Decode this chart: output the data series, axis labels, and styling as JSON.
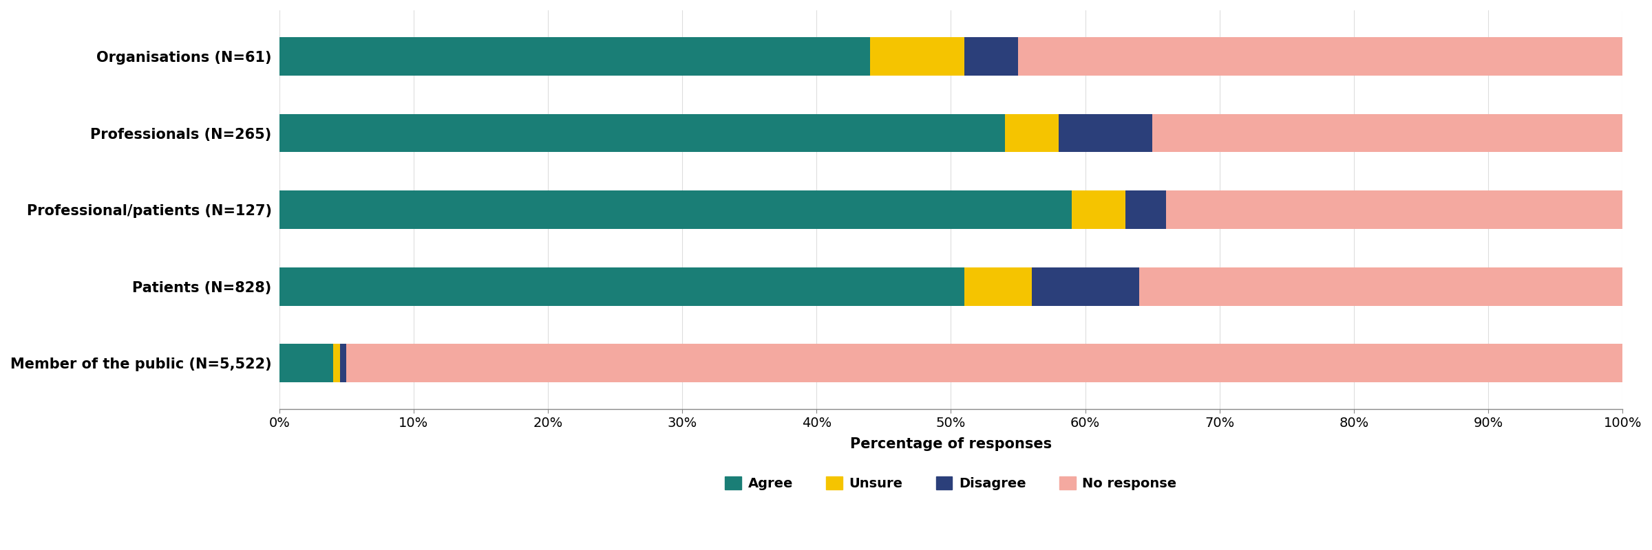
{
  "categories": [
    "Member of the public (N=5,522)",
    "Patients (N=828)",
    "Professional/patients (N=127)",
    "Professionals (N=265)",
    "Organisations (N=61)"
  ],
  "agree": [
    4,
    51,
    59,
    54,
    44
  ],
  "unsure": [
    0.5,
    5,
    4,
    4,
    7
  ],
  "disagree": [
    0.5,
    8,
    3,
    7,
    4
  ],
  "no_response": [
    95,
    36,
    34,
    35,
    45
  ],
  "colors": {
    "agree": "#1a7e76",
    "unsure": "#f5c400",
    "disagree": "#2b3f7a",
    "no_response": "#f4a9a0"
  },
  "legend_labels": [
    "Agree",
    "Unsure",
    "Disagree",
    "No response"
  ],
  "xlabel": "Percentage of responses",
  "xtick_labels": [
    "0%",
    "10%",
    "20%",
    "30%",
    "40%",
    "50%",
    "60%",
    "70%",
    "80%",
    "90%",
    "100%"
  ],
  "xtick_values": [
    0,
    10,
    20,
    30,
    40,
    50,
    60,
    70,
    80,
    90,
    100
  ],
  "xlim": [
    0,
    100
  ],
  "bar_height": 0.5,
  "figsize": [
    24.0,
    8.0
  ],
  "dpi": 100,
  "label_fontsize": 15,
  "tick_fontsize": 14,
  "legend_fontsize": 14,
  "background_color": "#ffffff",
  "grid_color": "#dddddd",
  "spine_color": "#888888"
}
